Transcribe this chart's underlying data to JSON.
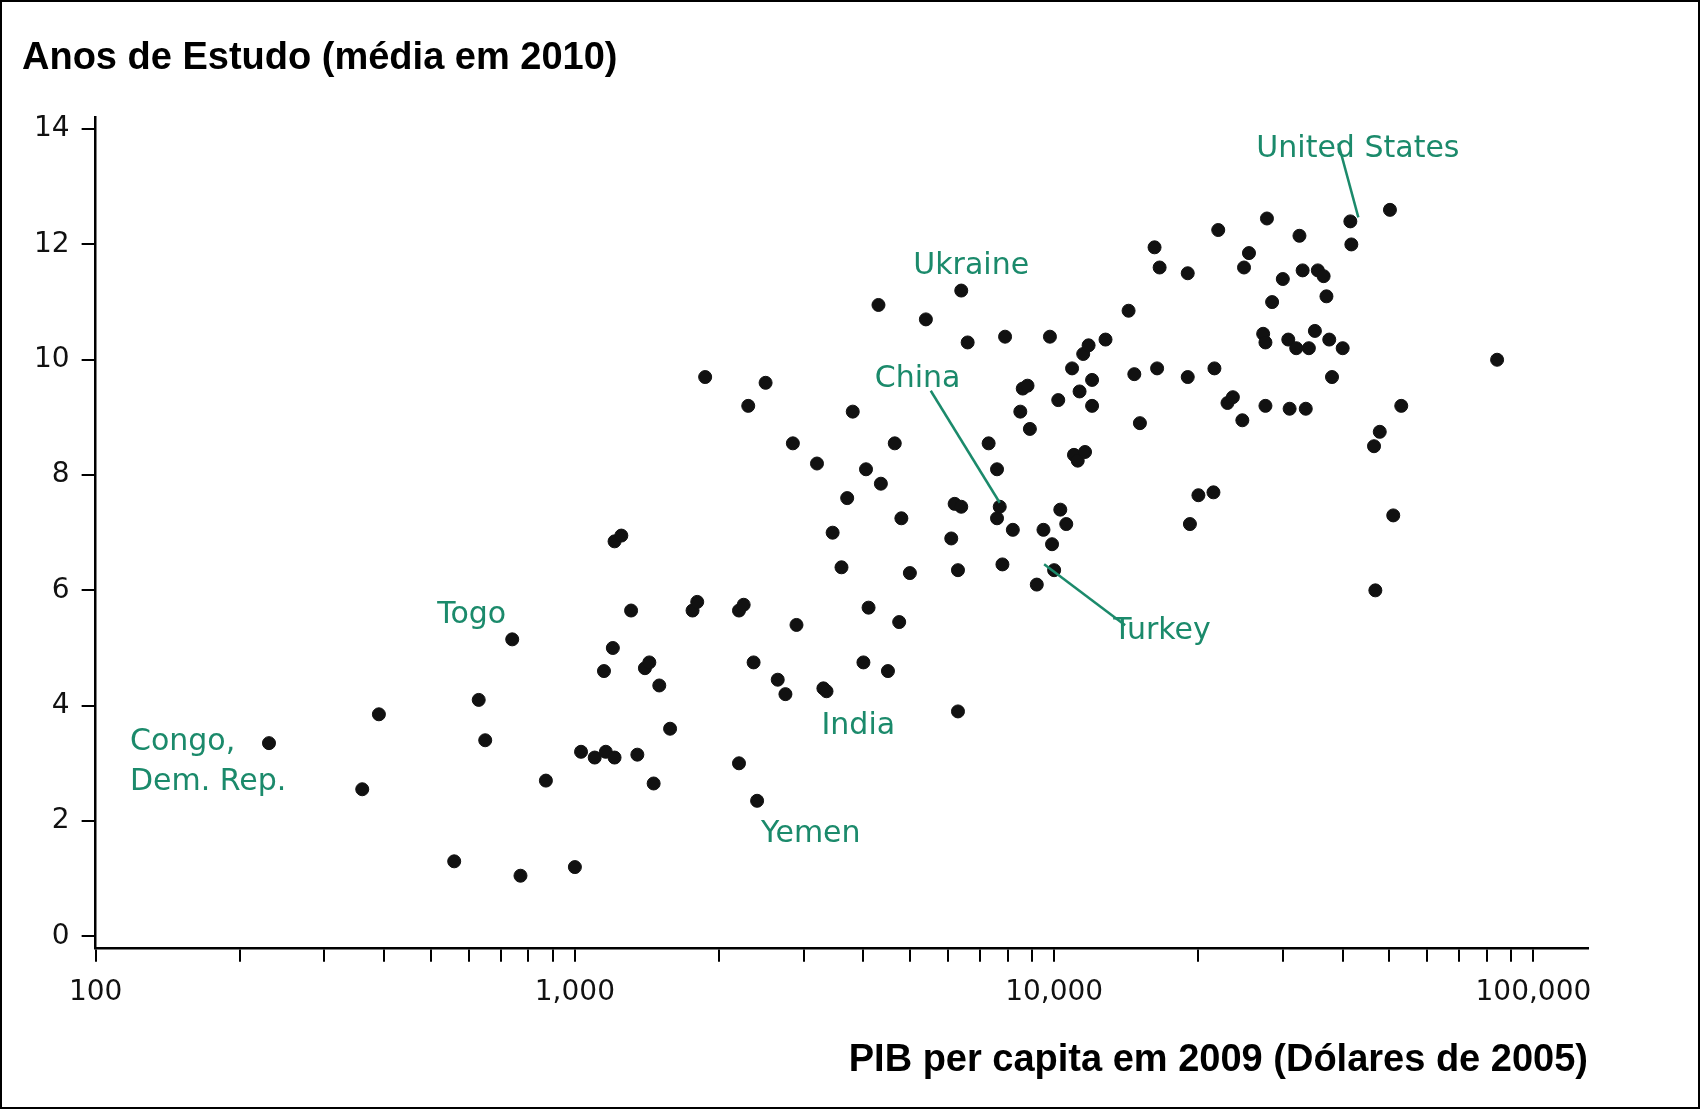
{
  "chart_data": {
    "type": "scatter",
    "title": "Anos de Estudo (média em 2010)",
    "xlabel": "PIB per capita em 2009 (Dólares de 2005)",
    "log": "x",
    "grid": false,
    "legend": false,
    "marker": "circle",
    "color": "#111111",
    "xlim": [
      100,
      130000
    ],
    "ylim": [
      -0.2,
      14.2
    ],
    "xticks": [
      {
        "value": 100,
        "label": "100"
      },
      {
        "value": 200,
        "label": null
      },
      {
        "value": 300,
        "label": null
      },
      {
        "value": 400,
        "label": null
      },
      {
        "value": 500,
        "label": null
      },
      {
        "value": 600,
        "label": null
      },
      {
        "value": 700,
        "label": null
      },
      {
        "value": 800,
        "label": null
      },
      {
        "value": 900,
        "label": null
      },
      {
        "value": 1000,
        "label": "1,000"
      },
      {
        "value": 2000,
        "label": null
      },
      {
        "value": 3000,
        "label": null
      },
      {
        "value": 4000,
        "label": null
      },
      {
        "value": 5000,
        "label": null
      },
      {
        "value": 6000,
        "label": null
      },
      {
        "value": 7000,
        "label": null
      },
      {
        "value": 8000,
        "label": null
      },
      {
        "value": 9000,
        "label": null
      },
      {
        "value": 10000,
        "label": "10,000"
      },
      {
        "value": 20000,
        "label": null
      },
      {
        "value": 30000,
        "label": null
      },
      {
        "value": 40000,
        "label": null
      },
      {
        "value": 50000,
        "label": null
      },
      {
        "value": 60000,
        "label": null
      },
      {
        "value": 70000,
        "label": null
      },
      {
        "value": 80000,
        "label": null
      },
      {
        "value": 90000,
        "label": null
      },
      {
        "value": 100000,
        "label": "100,000"
      }
    ],
    "yticks": [
      0,
      2,
      4,
      6,
      8,
      10,
      12,
      14
    ],
    "x": [
      230,
      360,
      390,
      560,
      630,
      650,
      740,
      770,
      870,
      1000,
      1030,
      1100,
      1150,
      1160,
      1200,
      1210,
      1210,
      1250,
      1310,
      1350,
      1400,
      1430,
      1460,
      1500,
      1580,
      1760,
      1800,
      1870,
      2200,
      2400,
      2200,
      2250,
      2300,
      2360,
      2500,
      2650,
      2750,
      2850,
      2900,
      3200,
      3300,
      3350,
      3450,
      3600,
      3700,
      3800,
      4000,
      4050,
      4100,
      4300,
      4350,
      4500,
      4650,
      4750,
      4800,
      5000,
      5400,
      6100,
      6200,
      6300,
      6300,
      6400,
      6400,
      6600,
      7300,
      7600,
      7600,
      7700,
      7800,
      7900,
      8200,
      8500,
      8600,
      8800,
      8900,
      9200,
      9500,
      9800,
      9900,
      10000,
      10200,
      10300,
      10600,
      10900,
      11000,
      11200,
      11300,
      11500,
      11600,
      11800,
      12000,
      12000,
      12800,
      14300,
      14700,
      15100,
      16200,
      16400,
      16600,
      19000,
      19000,
      19200,
      20000,
      21500,
      21600,
      22000,
      23000,
      23600,
      24700,
      24900,
      25500,
      27300,
      27600,
      27800,
      27600,
      28500,
      30000,
      31000,
      30800,
      32000,
      32500,
      33000,
      33500,
      34000,
      35000,
      35500,
      36500,
      37000,
      37500,
      38000,
      40000,
      41500,
      41700,
      46500,
      46800,
      47800,
      50200,
      51000,
      53000,
      84000
    ],
    "values": [
      3.35,
      2.55,
      3.85,
      1.3,
      4.1,
      3.4,
      5.15,
      1.05,
      2.7,
      1.2,
      3.2,
      3.1,
      4.6,
      3.2,
      5.0,
      6.85,
      3.1,
      6.95,
      5.65,
      3.15,
      4.65,
      4.75,
      2.65,
      4.35,
      3.6,
      5.65,
      5.8,
      9.7,
      3.0,
      2.35,
      5.65,
      5.75,
      9.2,
      4.75,
      9.6,
      4.45,
      4.2,
      8.55,
      5.4,
      8.2,
      4.3,
      4.25,
      7.0,
      6.4,
      7.6,
      9.1,
      4.75,
      8.1,
      5.7,
      10.95,
      7.85,
      4.6,
      8.55,
      5.45,
      7.25,
      6.3,
      10.7,
      6.9,
      7.5,
      6.35,
      3.9,
      7.45,
      11.2,
      10.3,
      8.55,
      8.1,
      7.25,
      7.45,
      6.45,
      10.4,
      7.05,
      9.1,
      9.5,
      9.55,
      8.8,
      6.1,
      7.05,
      10.4,
      6.8,
      6.35,
      9.3,
      7.4,
      7.15,
      9.85,
      8.35,
      8.25,
      9.45,
      10.1,
      8.4,
      10.25,
      9.65,
      9.2,
      10.35,
      10.85,
      9.75,
      8.9,
      11.95,
      9.85,
      11.6,
      11.5,
      9.7,
      7.15,
      7.65,
      7.7,
      9.85,
      12.25,
      9.25,
      9.35,
      8.95,
      11.6,
      11.85,
      10.45,
      10.3,
      12.45,
      9.2,
      11.0,
      11.4,
      9.15,
      10.35,
      10.2,
      12.15,
      11.55,
      9.15,
      10.2,
      10.5,
      11.55,
      11.45,
      11.1,
      10.35,
      9.7,
      10.2,
      12.4,
      12.0,
      8.5,
      6.0,
      8.75,
      12.6,
      7.3,
      9.2,
      10.0
    ],
    "annotations": [
      {
        "text": "Congo,\nDem. Rep.",
        "x": 230,
        "y": 3.35
      },
      {
        "text": "Togo",
        "x": 740,
        "y": 5.15
      },
      {
        "text": "India",
        "x": 3350,
        "y": 4.25
      },
      {
        "text": "Yemen",
        "x": 2400,
        "y": 2.35
      },
      {
        "text": "Ukraine",
        "x": 6400,
        "y": 11.2
      },
      {
        "text": "China",
        "x": 7700,
        "y": 7.45
      },
      {
        "text": "Turkey",
        "x": 10000,
        "y": 6.35
      },
      {
        "text": "United States",
        "x": 41500,
        "y": 12.4
      }
    ]
  }
}
